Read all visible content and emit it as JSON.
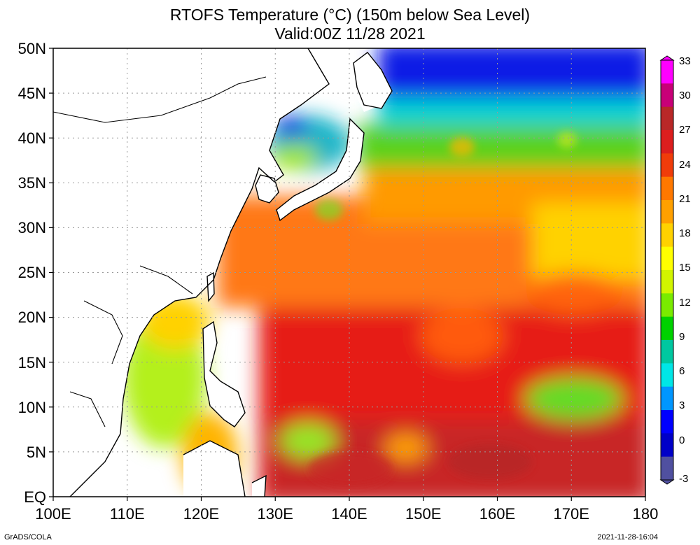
{
  "title": "RTOFS Temperature (°C) (150m below Sea Level)",
  "subtitle": "Valid:00Z 11/28 2021",
  "lat_labels": [
    "50N",
    "45N",
    "40N",
    "35N",
    "30N",
    "25N",
    "20N",
    "15N",
    "10N",
    "5N",
    "EQ"
  ],
  "lon_labels": [
    "100E",
    "110E",
    "120E",
    "130E",
    "140E",
    "150E",
    "160E",
    "170E",
    "180"
  ],
  "colorbar": {
    "labels": [
      "33",
      "30",
      "27",
      "24",
      "21",
      "18",
      "15",
      "12",
      "9",
      "6",
      "3",
      "0",
      "-3"
    ],
    "colors": [
      "#ff00ff",
      "#c80078",
      "#b92828",
      "#dc1e1e",
      "#f03c0a",
      "#ff7800",
      "#ffa000",
      "#ffd200",
      "#ffff00",
      "#d2f500",
      "#7aeb00",
      "#00d200",
      "#00c8a0",
      "#00e6e6",
      "#0096ff",
      "#0000ff",
      "#0000c8",
      "#5050a0"
    ]
  },
  "footer_left": "GrADS/COLA",
  "footer_right": "2021-11-28-16:04"
}
